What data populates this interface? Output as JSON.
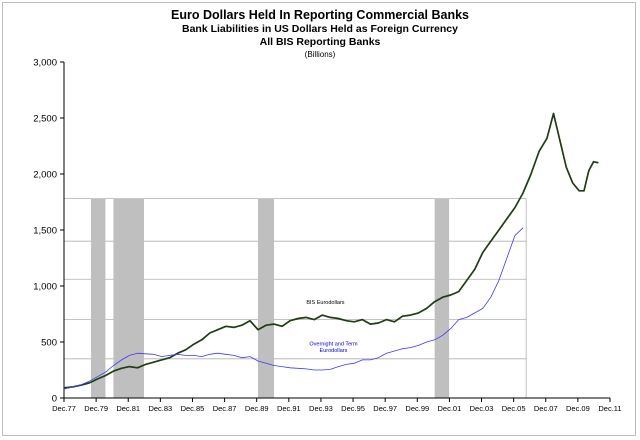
{
  "titles": {
    "line1": "Euro Dollars Held In Reporting Commercial Banks",
    "line2": "Bank Liabilities  in US Dollars Held as Foreign Currency",
    "line3": "All BIS Reporting Banks",
    "line4": "(Billions)"
  },
  "chart_data": {
    "type": "line",
    "title": "Euro Dollars Held In Reporting Commercial Banks",
    "subtitle": "Bank Liabilities  in US Dollars Held as Foreign Currency",
    "ylim": [
      0,
      3000
    ],
    "xlim": [
      1977.92,
      2011.92
    ],
    "y_ticks": [
      0,
      500,
      1000,
      1500,
      2000,
      2500,
      3000
    ],
    "y_tick_labels": [
      "0",
      "500",
      "1,000",
      "1,500",
      "2,000",
      "2,500",
      "3,000"
    ],
    "x_ticks": [
      1977.92,
      1979.92,
      1981.92,
      1983.92,
      1985.92,
      1987.92,
      1989.92,
      1991.92,
      1993.92,
      1995.92,
      1997.92,
      1999.92,
      2001.92,
      2003.92,
      2005.92,
      2007.92,
      2009.92,
      2011.92
    ],
    "x_tick_labels": [
      "Dec.77",
      "Dec.79",
      "Dec.81",
      "Dec.83",
      "Dec.85",
      "Dec.87",
      "Dec.89",
      "Dec.91",
      "Dec.93",
      "Dec.95",
      "Dec.97",
      "Dec.99",
      "Dec.01",
      "Dec.03",
      "Dec.05",
      "Dec.07",
      "Dec.09",
      "Dec.11"
    ],
    "grid_lines_y": [
      350,
      700,
      1060,
      1400,
      1780
    ],
    "grid_x_range": [
      1977.92,
      2006.7
    ],
    "recessions": [
      {
        "start": 1979.6,
        "end": 1980.5
      },
      {
        "start": 1981.0,
        "end": 1982.9
      },
      {
        "start": 1990.0,
        "end": 1991.0
      },
      {
        "start": 2001.0,
        "end": 2001.9
      }
    ],
    "annotations": [
      {
        "text": "BIS Eurodollars",
        "x": 1994.2,
        "y": 840,
        "color": "#000000"
      },
      {
        "text": "Overnight and Term",
        "x": 1994.7,
        "y": 470,
        "color": "#0000cc"
      },
      {
        "text": "Eurodollars",
        "x": 1994.7,
        "y": 410,
        "color": "#0000cc"
      }
    ],
    "series": [
      {
        "name": "BIS Eurodollars",
        "color": "#1f3d12",
        "x": [
          1977.92,
          1978.5,
          1979.0,
          1979.5,
          1980.0,
          1980.5,
          1981.0,
          1981.5,
          1982.0,
          1982.5,
          1983.0,
          1983.5,
          1984.0,
          1984.5,
          1985.0,
          1985.5,
          1986.0,
          1986.5,
          1987.0,
          1987.5,
          1988.0,
          1988.5,
          1989.0,
          1989.5,
          1990.0,
          1990.5,
          1991.0,
          1991.5,
          1992.0,
          1992.5,
          1993.0,
          1993.5,
          1994.0,
          1994.5,
          1995.0,
          1995.5,
          1996.0,
          1996.5,
          1997.0,
          1997.5,
          1998.0,
          1998.5,
          1999.0,
          1999.5,
          2000.0,
          2000.5,
          2001.0,
          2001.5,
          2002.0,
          2002.5,
          2003.0,
          2003.5,
          2004.0,
          2004.5,
          2005.0,
          2005.5,
          2006.0,
          2006.5,
          2007.0,
          2007.5,
          2008.0,
          2008.4,
          2008.8,
          2009.2,
          2009.6,
          2010.0,
          2010.3,
          2010.6,
          2010.9,
          2011.2
        ],
        "y": [
          90,
          100,
          115,
          135,
          170,
          200,
          240,
          265,
          280,
          270,
          300,
          320,
          340,
          360,
          400,
          430,
          480,
          520,
          580,
          610,
          640,
          630,
          650,
          690,
          610,
          650,
          660,
          640,
          690,
          710,
          720,
          700,
          740,
          720,
          710,
          690,
          680,
          700,
          660,
          670,
          700,
          680,
          730,
          740,
          760,
          800,
          860,
          900,
          920,
          950,
          1050,
          1150,
          1300,
          1400,
          1500,
          1600,
          1700,
          1830,
          2000,
          2200,
          2320,
          2540,
          2300,
          2060,
          1920,
          1850,
          1850,
          2030,
          2110,
          2100
        ]
      },
      {
        "name": "Overnight and Term Eurodollars",
        "color": "#3a3aff",
        "x": [
          1977.92,
          1978.5,
          1979.0,
          1979.5,
          1980.0,
          1980.5,
          1981.0,
          1981.5,
          1982.0,
          1982.5,
          1983.0,
          1983.5,
          1984.0,
          1984.5,
          1985.0,
          1985.5,
          1986.0,
          1986.5,
          1987.0,
          1987.5,
          1988.0,
          1988.5,
          1989.0,
          1989.5,
          1990.0,
          1990.5,
          1991.0,
          1991.5,
          1992.0,
          1992.5,
          1993.0,
          1993.5,
          1994.0,
          1994.5,
          1995.0,
          1995.5,
          1996.0,
          1996.5,
          1997.0,
          1997.5,
          1998.0,
          1998.5,
          1999.0,
          1999.5,
          2000.0,
          2000.5,
          2001.0,
          2001.5,
          2002.0,
          2002.5,
          2003.0,
          2003.5,
          2004.0,
          2004.5,
          2005.0,
          2005.5,
          2006.0,
          2006.5
        ],
        "y": [
          80,
          100,
          120,
          150,
          190,
          230,
          290,
          340,
          380,
          400,
          395,
          390,
          370,
          380,
          390,
          380,
          380,
          370,
          390,
          400,
          390,
          380,
          360,
          370,
          330,
          310,
          290,
          280,
          270,
          265,
          260,
          250,
          250,
          255,
          280,
          300,
          310,
          340,
          340,
          360,
          400,
          420,
          440,
          450,
          470,
          500,
          520,
          560,
          620,
          700,
          720,
          760,
          800,
          900,
          1050,
          1250,
          1450,
          1520
        ]
      }
    ]
  }
}
